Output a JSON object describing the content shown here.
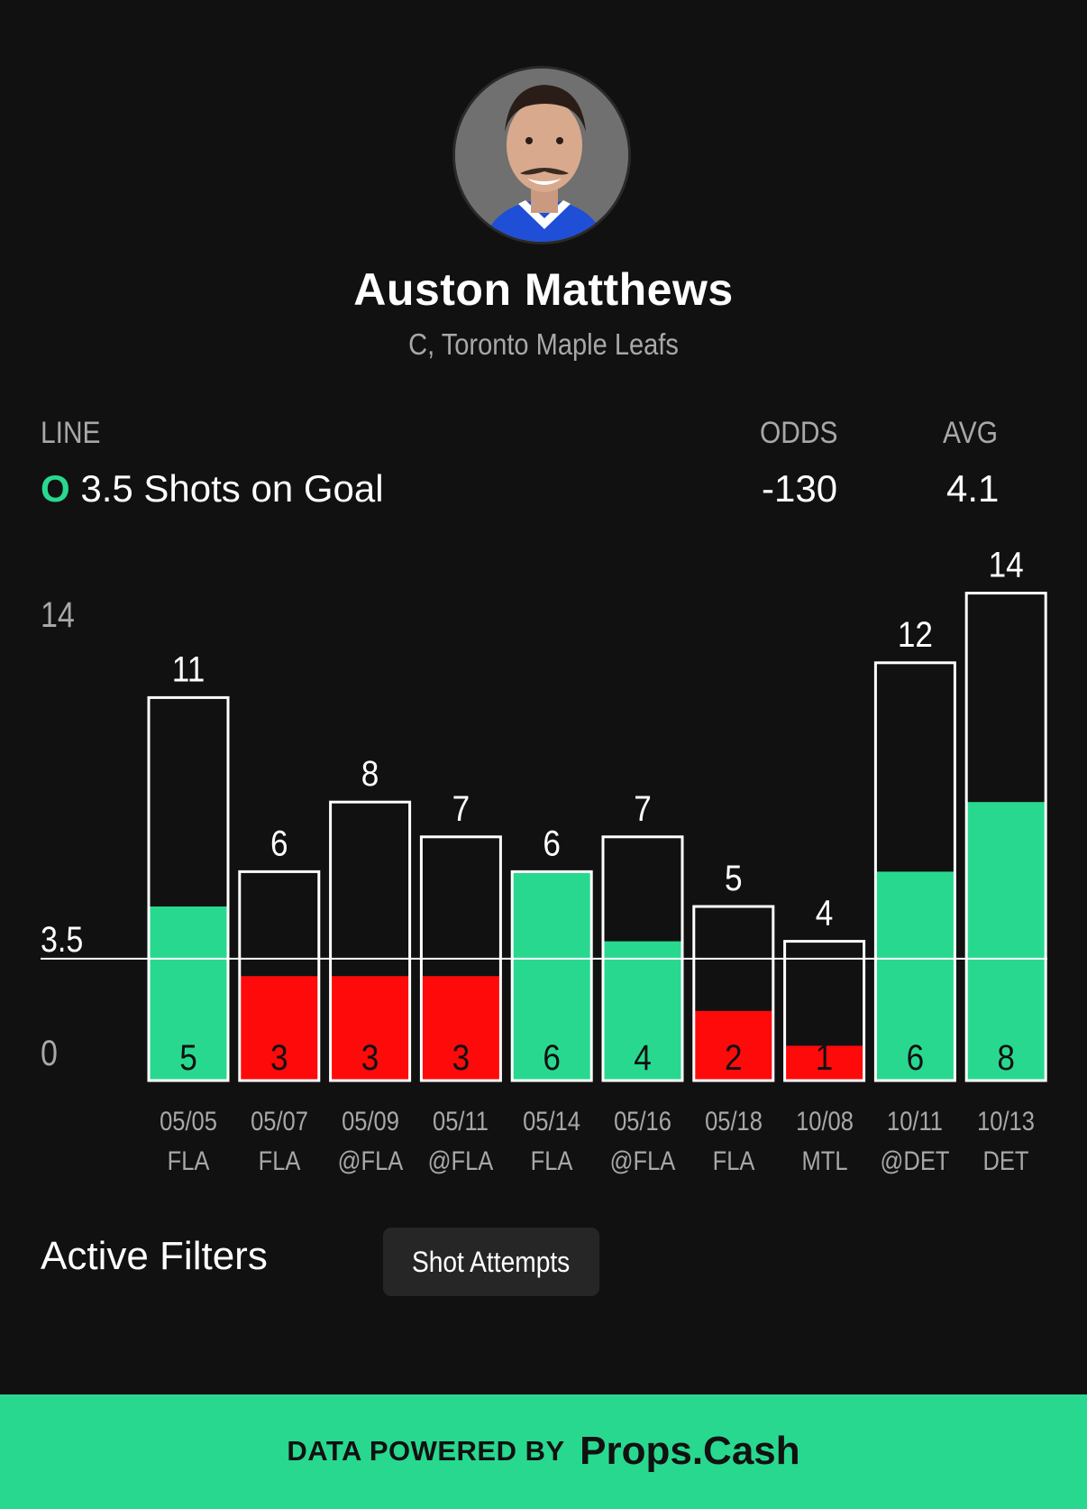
{
  "player": {
    "name": "Auston Matthews",
    "subtitle": "C, Toronto Maple Leafs"
  },
  "line": {
    "header": "LINE",
    "over_badge": "O",
    "text": "3.5 Shots on Goal",
    "odds_header": "ODDS",
    "odds": "-130",
    "avg_header": "AVG",
    "avg": "4.1"
  },
  "chart_data": {
    "type": "bar",
    "y_max_label": "14",
    "line_label": "3.5",
    "zero_label": "0",
    "line_value": 3.5,
    "ylim": [
      0,
      14
    ],
    "categories": [
      {
        "date": "05/05",
        "opp": "FLA"
      },
      {
        "date": "05/07",
        "opp": "FLA"
      },
      {
        "date": "05/09",
        "opp": "@FLA"
      },
      {
        "date": "05/11",
        "opp": "@FLA"
      },
      {
        "date": "05/14",
        "opp": "FLA"
      },
      {
        "date": "05/16",
        "opp": "@FLA"
      },
      {
        "date": "05/18",
        "opp": "FLA"
      },
      {
        "date": "10/08",
        "opp": "MTL"
      },
      {
        "date": "10/11",
        "opp": "@DET"
      },
      {
        "date": "10/13",
        "opp": "DET"
      }
    ],
    "series": [
      {
        "name": "Shot Attempts",
        "values": [
          11,
          6,
          8,
          7,
          6,
          7,
          5,
          4,
          12,
          14
        ]
      },
      {
        "name": "Shots on Goal",
        "values": [
          5,
          3,
          3,
          3,
          6,
          4,
          2,
          1,
          6,
          8
        ]
      }
    ],
    "colors": {
      "over": "#29d88f",
      "under": "#ff0a0a",
      "outline": "#ffffff"
    }
  },
  "filters": {
    "title": "Active Filters",
    "chip": "Shot Attempts"
  },
  "footer": {
    "prefix": "DATA POWERED BY",
    "brand": "Props.Cash"
  }
}
